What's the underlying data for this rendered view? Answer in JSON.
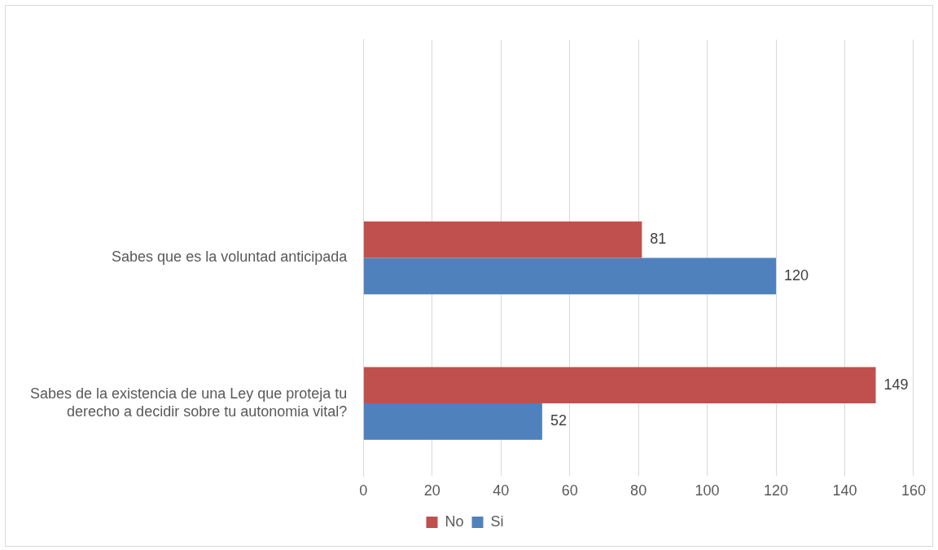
{
  "chart_data": {
    "type": "bar",
    "orientation": "horizontal",
    "categories": [
      null,
      "Sabes que es la voluntad anticipada",
      "Sabes de la existencia de una Ley que proteja tu derecho a decidir sobre tu autonomia vital?"
    ],
    "series": [
      {
        "name": "No",
        "color": "#c0504d",
        "values": [
          null,
          81,
          149
        ]
      },
      {
        "name": "Si",
        "color": "#4f81bd",
        "values": [
          null,
          120,
          52
        ]
      }
    ],
    "xlim": [
      0,
      160
    ],
    "xticks": [
      0,
      20,
      40,
      60,
      80,
      100,
      120,
      140,
      160
    ],
    "grid": "x",
    "legend": "bottom",
    "data_labels": true
  }
}
